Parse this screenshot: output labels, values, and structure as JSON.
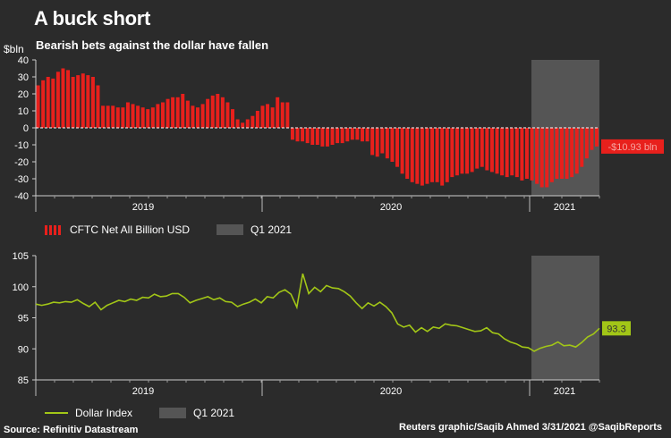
{
  "title": "A buck short",
  "subtitle": "Bearish bets against the dollar have fallen",
  "unit_label": "$bln",
  "legend_top": {
    "series": "CFTC Net All Billion USD",
    "shade": "Q1 2021"
  },
  "legend_bottom": {
    "series": "Dollar Index",
    "shade": "Q1 2021"
  },
  "source": "Source: Refinitiv Datastream",
  "credit": "Reuters graphic/Saqib Ahmed 3/31/2021 @SaqibReports",
  "colors": {
    "bars": "#e8201c",
    "line": "#a2c617",
    "shade": "#555555"
  },
  "chart_data": [
    {
      "type": "bar",
      "series": [
        {
          "name": "CFTC Net All Billion USD",
          "values": [
            25,
            28,
            30,
            29,
            33,
            35,
            34,
            30,
            31,
            32,
            31,
            30,
            25,
            13,
            13,
            13,
            12,
            12,
            15,
            14,
            13,
            12,
            11,
            12,
            14,
            15,
            17,
            18,
            18,
            20,
            16,
            13,
            12,
            14,
            17,
            19,
            20,
            18,
            15,
            11,
            5,
            3,
            5,
            7,
            10,
            13,
            14,
            12,
            18,
            15,
            15,
            -7,
            -8,
            -8,
            -9,
            -10,
            -10,
            -11,
            -11,
            -10,
            -9,
            -9,
            -8,
            -7,
            -7,
            -8,
            -8,
            -16,
            -17,
            -15,
            -18,
            -20,
            -23,
            -27,
            -30,
            -32,
            -33,
            -34,
            -33,
            -32,
            -32,
            -34,
            -32,
            -29,
            -28,
            -27,
            -27,
            -26,
            -24,
            -23,
            -25,
            -26,
            -27,
            -28,
            -29,
            -28,
            -29,
            -31,
            -30,
            -31,
            -33,
            -35,
            -35,
            -32,
            -30,
            -30,
            -30,
            -29,
            -27,
            -23,
            -18,
            -13,
            -11
          ],
          "last_label": "-$10.93 bln"
        }
      ],
      "x_ticks": [
        "2019",
        "2020",
        "2021"
      ],
      "ylim": [
        -40,
        40
      ],
      "y_ticks": [
        40,
        30,
        20,
        10,
        0,
        -10,
        -20,
        -30,
        -40
      ],
      "shaded_period": "Q1 2021",
      "legend": "bottom-left",
      "grid": false
    },
    {
      "type": "line",
      "series": [
        {
          "name": "Dollar Index",
          "values": [
            97.2,
            97.0,
            97.2,
            97.5,
            97.4,
            97.6,
            97.5,
            97.9,
            97.3,
            96.8,
            97.5,
            96.3,
            97.0,
            97.4,
            97.8,
            97.6,
            98.0,
            97.8,
            98.3,
            98.2,
            98.8,
            98.4,
            98.5,
            98.9,
            98.9,
            98.3,
            97.4,
            97.8,
            98.1,
            98.4,
            97.9,
            98.2,
            97.6,
            97.5,
            96.8,
            97.2,
            97.5,
            98.0,
            97.4,
            98.4,
            98.2,
            99.1,
            99.5,
            98.8,
            96.7,
            102.1,
            98.9,
            99.9,
            99.2,
            100.2,
            99.8,
            99.7,
            99.2,
            98.5,
            97.4,
            96.5,
            97.4,
            96.9,
            97.5,
            96.8,
            95.8,
            94.0,
            93.5,
            93.8,
            92.7,
            93.4,
            92.8,
            93.5,
            93.3,
            94.0,
            93.8,
            93.7,
            93.4,
            93.1,
            92.8,
            92.9,
            93.4,
            92.6,
            92.4,
            91.6,
            91.1,
            90.8,
            90.3,
            90.2,
            89.6,
            90.1,
            90.4,
            90.6,
            91.1,
            90.5,
            90.6,
            90.3,
            91.0,
            91.9,
            92.4,
            93.3
          ],
          "last_label": "93.3"
        }
      ],
      "x_ticks": [
        "2019",
        "2020",
        "2021"
      ],
      "ylim": [
        85,
        105
      ],
      "y_ticks": [
        105,
        100,
        95,
        90,
        85
      ],
      "shaded_period": "Q1 2021",
      "legend": "bottom-left",
      "grid": false
    }
  ]
}
